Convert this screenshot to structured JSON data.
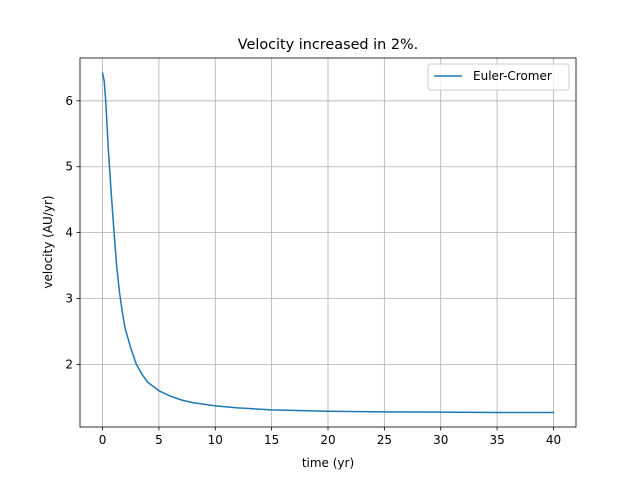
{
  "chart_data": {
    "type": "line",
    "title": "Velocity increased in 2%.",
    "xlabel": "time (yr)",
    "ylabel": "velocity (AU/yr)",
    "xlim": [
      -2,
      42
    ],
    "ylim": [
      1.05,
      6.65
    ],
    "xticks": [
      0,
      5,
      10,
      15,
      20,
      25,
      30,
      35,
      40
    ],
    "yticks": [
      2,
      3,
      4,
      5,
      6
    ],
    "grid": true,
    "legend_position": "upper right",
    "series": [
      {
        "name": "Euler-Cromer",
        "color": "#1f77b4",
        "x": [
          0,
          0.15,
          0.3,
          0.5,
          0.75,
          1,
          1.25,
          1.5,
          1.75,
          2,
          2.5,
          3,
          3.5,
          4,
          5,
          6,
          7,
          8,
          10,
          12,
          15,
          20,
          25,
          30,
          35,
          40
        ],
        "y": [
          6.42,
          6.3,
          5.95,
          5.3,
          4.65,
          4.05,
          3.5,
          3.1,
          2.8,
          2.55,
          2.25,
          2.0,
          1.85,
          1.73,
          1.6,
          1.52,
          1.46,
          1.42,
          1.37,
          1.34,
          1.31,
          1.29,
          1.28,
          1.275,
          1.27,
          1.27
        ]
      }
    ]
  }
}
